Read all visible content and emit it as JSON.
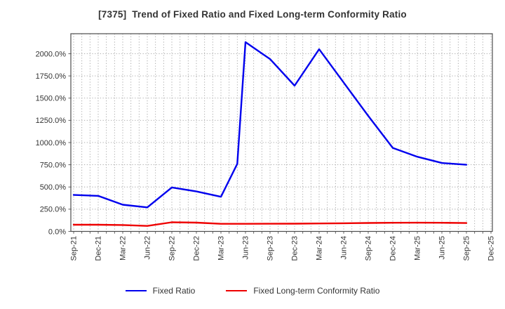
{
  "window": {
    "title": "[7375]  Trend of Fixed Ratio and Fixed Long-term Conformity Ratio"
  },
  "chart_data": {
    "type": "line",
    "title": "[7375]  Trend of Fixed Ratio and Fixed Long-term Conformity Ratio",
    "x_unit": "fiscal quarter (months indexed from Sep-2021)",
    "x_tick_labels": [
      "Sep-21",
      "Dec-21",
      "Mar-22",
      "Jun-22",
      "Sep-22",
      "Dec-22",
      "Mar-23",
      "Jun-23",
      "Sep-23",
      "Dec-23",
      "Mar-24",
      "Jun-24",
      "Sep-24",
      "Dec-24",
      "Mar-25",
      "Jun-25",
      "Sep-25",
      "Dec-25"
    ],
    "x_tick_months": [
      0,
      3,
      6,
      9,
      12,
      15,
      18,
      21,
      24,
      27,
      30,
      33,
      36,
      39,
      42,
      45,
      48,
      51
    ],
    "y_ticks": [
      0,
      250,
      500,
      750,
      1000,
      1250,
      1500,
      1750,
      2000
    ],
    "y_tick_labels": [
      "0.0%",
      "250.0%",
      "500.0%",
      "750.0%",
      "1000.0%",
      "1250.0%",
      "1500.0%",
      "1750.0%",
      "2000.0%"
    ],
    "ylim": [
      0,
      2225
    ],
    "grid": "dotted gray; vertical line every month, horizontal line every 250%",
    "legend_position": "bottom-center",
    "series": [
      {
        "name": "Fixed Ratio",
        "color": "#0000ee",
        "x_months": [
          0,
          3,
          6,
          9,
          12,
          15,
          18,
          20,
          21,
          24,
          27,
          30,
          33,
          36,
          39,
          42,
          45,
          48
        ],
        "x_labels": [
          "Sep-21",
          "Dec-21",
          "Mar-22",
          "Jun-22",
          "Sep-22",
          "Dec-22",
          "Mar-23",
          "May-23",
          "Jun-23",
          "Sep-23",
          "Dec-23",
          "Mar-24",
          "Jun-24",
          "Sep-24",
          "Dec-24",
          "Mar-25",
          "Jun-25",
          "Sep-25"
        ],
        "values": [
          410,
          400,
          300,
          270,
          495,
          450,
          390,
          760,
          2130,
          1940,
          1640,
          2050,
          1675,
          1300,
          940,
          840,
          770,
          750
        ]
      },
      {
        "name": "Fixed Long-term Conformity Ratio",
        "color": "#ee0000",
        "x_months": [
          0,
          3,
          6,
          9,
          12,
          15,
          18,
          20,
          21,
          24,
          27,
          30,
          33,
          36,
          39,
          42,
          45,
          48
        ],
        "x_labels": [
          "Sep-21",
          "Dec-21",
          "Mar-22",
          "Jun-22",
          "Sep-22",
          "Dec-22",
          "Mar-23",
          "May-23",
          "Jun-23",
          "Sep-23",
          "Dec-23",
          "Mar-24",
          "Jun-24",
          "Sep-24",
          "Dec-24",
          "Mar-25",
          "Jun-25",
          "Sep-25"
        ],
        "values": [
          75,
          75,
          72,
          62,
          103,
          99,
          85,
          85,
          85,
          86,
          87,
          89,
          92,
          95,
          97,
          98,
          97,
          94
        ]
      }
    ]
  },
  "legend": {
    "items": [
      {
        "label": "Fixed Ratio",
        "color": "#0000ee"
      },
      {
        "label": "Fixed Long-term Conformity Ratio",
        "color": "#ee0000"
      }
    ]
  },
  "colors": {
    "background": "#ffffff",
    "axis_border": "#4d4d4d",
    "grid": "#9a9a9a",
    "tick_text": "#333333",
    "title_text": "#333333",
    "series_blue": "#0000ee",
    "series_red": "#ee0000"
  }
}
